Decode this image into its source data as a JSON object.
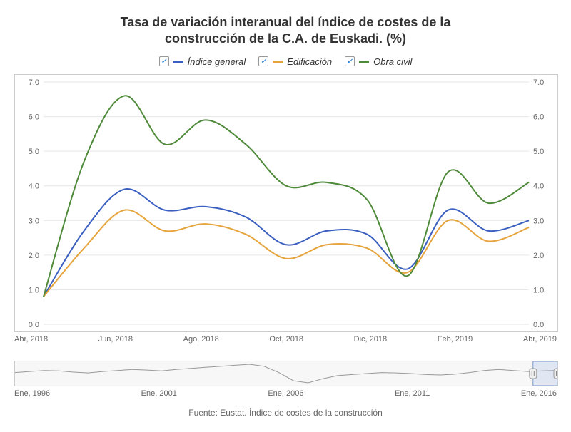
{
  "title_line1": "Tasa de variación interanual del índice de costes de la",
  "title_line2": "construcción de la C.A. de Euskadi. (%)",
  "source": "Fuente: Eustat. Índice de costes de la construcción",
  "legend": [
    {
      "label": "Índice general",
      "color": "#3b5fc0"
    },
    {
      "label": "Edificación",
      "color": "#e6a43c"
    },
    {
      "label": "Obra civil",
      "color": "#4f8a3a"
    }
  ],
  "chart": {
    "type": "line",
    "background_color": "#ffffff",
    "grid_color": "#e6e6e6",
    "axis_color": "#666666",
    "label_fontsize": 11,
    "ylim": [
      0,
      7.0
    ],
    "ytick_step": 1.0,
    "x_labels": [
      "Abr, 2018",
      "Jun, 2018",
      "Ago, 2018",
      "Oct, 2018",
      "Dic, 2018",
      "Feb, 2019",
      "Abr, 2019"
    ],
    "x_index": [
      0,
      1,
      2,
      3,
      4,
      5,
      6,
      7,
      8,
      9,
      10,
      11,
      12
    ],
    "series": {
      "indice_general": {
        "color": "#3b5fc0",
        "width": 2,
        "values": [
          0.8,
          2.7,
          3.9,
          3.3,
          3.4,
          3.1,
          2.3,
          2.7,
          2.6,
          1.6,
          3.3,
          2.7,
          3.0
        ]
      },
      "edificacion": {
        "color": "#e6a43c",
        "width": 2,
        "values": [
          0.8,
          2.2,
          3.3,
          2.7,
          2.9,
          2.6,
          1.9,
          2.3,
          2.2,
          1.5,
          3.0,
          2.4,
          2.8
        ]
      },
      "obra_civil": {
        "color": "#4f8a3a",
        "width": 2,
        "values": [
          0.8,
          4.7,
          6.6,
          5.2,
          5.9,
          5.2,
          4.0,
          4.1,
          3.6,
          1.4,
          4.4,
          3.5,
          4.1
        ]
      }
    }
  },
  "navigator": {
    "labels": [
      "Ene, 1996",
      "Ene, 2001",
      "Ene, 2006",
      "Ene, 2011",
      "Ene, 2016"
    ],
    "line_color": "#999999",
    "window_start": 0.955,
    "window_end": 1.0,
    "points": [
      2,
      2.5,
      3,
      2.8,
      2.2,
      1.8,
      2.5,
      3,
      3.5,
      3.2,
      2.8,
      3.5,
      4,
      4.5,
      5,
      5.5,
      6,
      5,
      2,
      -2,
      -3,
      -1,
      0.5,
      1,
      1.5,
      2,
      1.8,
      1.5,
      1,
      0.8,
      1.2,
      2,
      3,
      3.5,
      3,
      2.5,
      2.8,
      3
    ]
  }
}
